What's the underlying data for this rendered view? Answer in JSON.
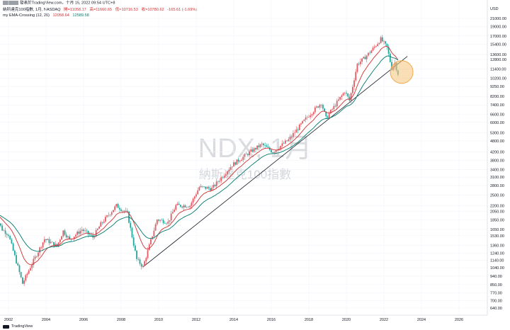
{
  "header": {
    "line1": "發表於TradingView.com，十月 15, 2022 09:54 UTC+8",
    "symbol": "納斯達克100指數, 1月, NASDAQ",
    "ohlc": {
      "open": "開=11058.17",
      "high": "高=11660.65",
      "low": "低=10716.53",
      "close": "收=10780.62",
      "change": "-165.61 (-1.69%)"
    },
    "indicator": "my EMA-Crossing (12, 26)",
    "ema12": "12058.64",
    "ema26": "12589.58"
  },
  "watermark": {
    "main": "NDX, 1月",
    "sub": "納斯達克100指數"
  },
  "footer": {
    "brand": "TradingView"
  },
  "colors": {
    "up": "#e15b64",
    "down": "#26a69a",
    "ema12": "#d32f2f",
    "ema26": "#00796b",
    "trendline": "#131722",
    "highlight_fill": "#f6c27a",
    "highlight_stroke": "#f0a94b"
  },
  "chart_data": {
    "type": "candlestick",
    "scale": "log",
    "currency_label": "USD",
    "y_ticks": [
      "21000.00",
      "19000.00",
      "17000.00",
      "15400.00",
      "13600.00",
      "12800.00",
      "11400.00",
      "10200.00",
      "9250.00",
      "8200.00",
      "7400.00",
      "6600.00",
      "6000.00",
      "5300.00",
      "4800.00",
      "4200.00",
      "3800.00",
      "3400.00",
      "3100.00",
      "2800.00",
      "2500.00",
      "2200.00",
      "2050.00",
      "1850.00",
      "1650.00",
      "1530.00",
      "1360.00",
      "1240.00",
      "1140.00",
      "1040.00",
      "940.00",
      "850.00",
      "770.00",
      "700.00",
      "640.00"
    ],
    "x_ticks": [
      "2002",
      "2004",
      "2006",
      "2008",
      "2010",
      "2012",
      "2014",
      "2016",
      "2018",
      "2020",
      "2022",
      "2024",
      "2026"
    ],
    "monthly_close_path": [
      {
        "date": "2001-04",
        "value": 2000
      },
      {
        "date": "2001-09",
        "value": 1650
      },
      {
        "date": "2002-01",
        "value": 1550
      },
      {
        "date": "2002-07",
        "value": 1050
      },
      {
        "date": "2002-10",
        "value": 860
      },
      {
        "date": "2003-03",
        "value": 1050
      },
      {
        "date": "2003-12",
        "value": 1470
      },
      {
        "date": "2004-08",
        "value": 1350
      },
      {
        "date": "2004-12",
        "value": 1620
      },
      {
        "date": "2005-04",
        "value": 1460
      },
      {
        "date": "2005-12",
        "value": 1650
      },
      {
        "date": "2006-07",
        "value": 1500
      },
      {
        "date": "2006-12",
        "value": 1760
      },
      {
        "date": "2007-10",
        "value": 2200
      },
      {
        "date": "2008-05",
        "value": 2000
      },
      {
        "date": "2008-11",
        "value": 1150
      },
      {
        "date": "2009-03",
        "value": 1050
      },
      {
        "date": "2009-12",
        "value": 1860
      },
      {
        "date": "2010-07",
        "value": 1800
      },
      {
        "date": "2010-12",
        "value": 2200
      },
      {
        "date": "2011-09",
        "value": 2200
      },
      {
        "date": "2012-03",
        "value": 2750
      },
      {
        "date": "2012-11",
        "value": 2700
      },
      {
        "date": "2013-12",
        "value": 3590
      },
      {
        "date": "2014-12",
        "value": 4230
      },
      {
        "date": "2015-07",
        "value": 4600
      },
      {
        "date": "2016-02",
        "value": 4200
      },
      {
        "date": "2016-12",
        "value": 4860
      },
      {
        "date": "2017-12",
        "value": 6400
      },
      {
        "date": "2018-09",
        "value": 7600
      },
      {
        "date": "2018-12",
        "value": 6300
      },
      {
        "date": "2019-12",
        "value": 8730
      },
      {
        "date": "2020-03",
        "value": 7800
      },
      {
        "date": "2020-08",
        "value": 12100
      },
      {
        "date": "2020-12",
        "value": 12900
      },
      {
        "date": "2021-06",
        "value": 14550
      },
      {
        "date": "2021-11",
        "value": 16350
      },
      {
        "date": "2022-03",
        "value": 14800
      },
      {
        "date": "2022-06",
        "value": 11500
      },
      {
        "date": "2022-08",
        "value": 12300
      },
      {
        "date": "2022-10",
        "value": 10780
      }
    ],
    "trendline": [
      {
        "date": "2009-03",
        "value": 1050
      },
      {
        "date": "2023-04",
        "value": 13300
      }
    ],
    "highlight": {
      "date": "2022-11",
      "value": 11000
    }
  }
}
